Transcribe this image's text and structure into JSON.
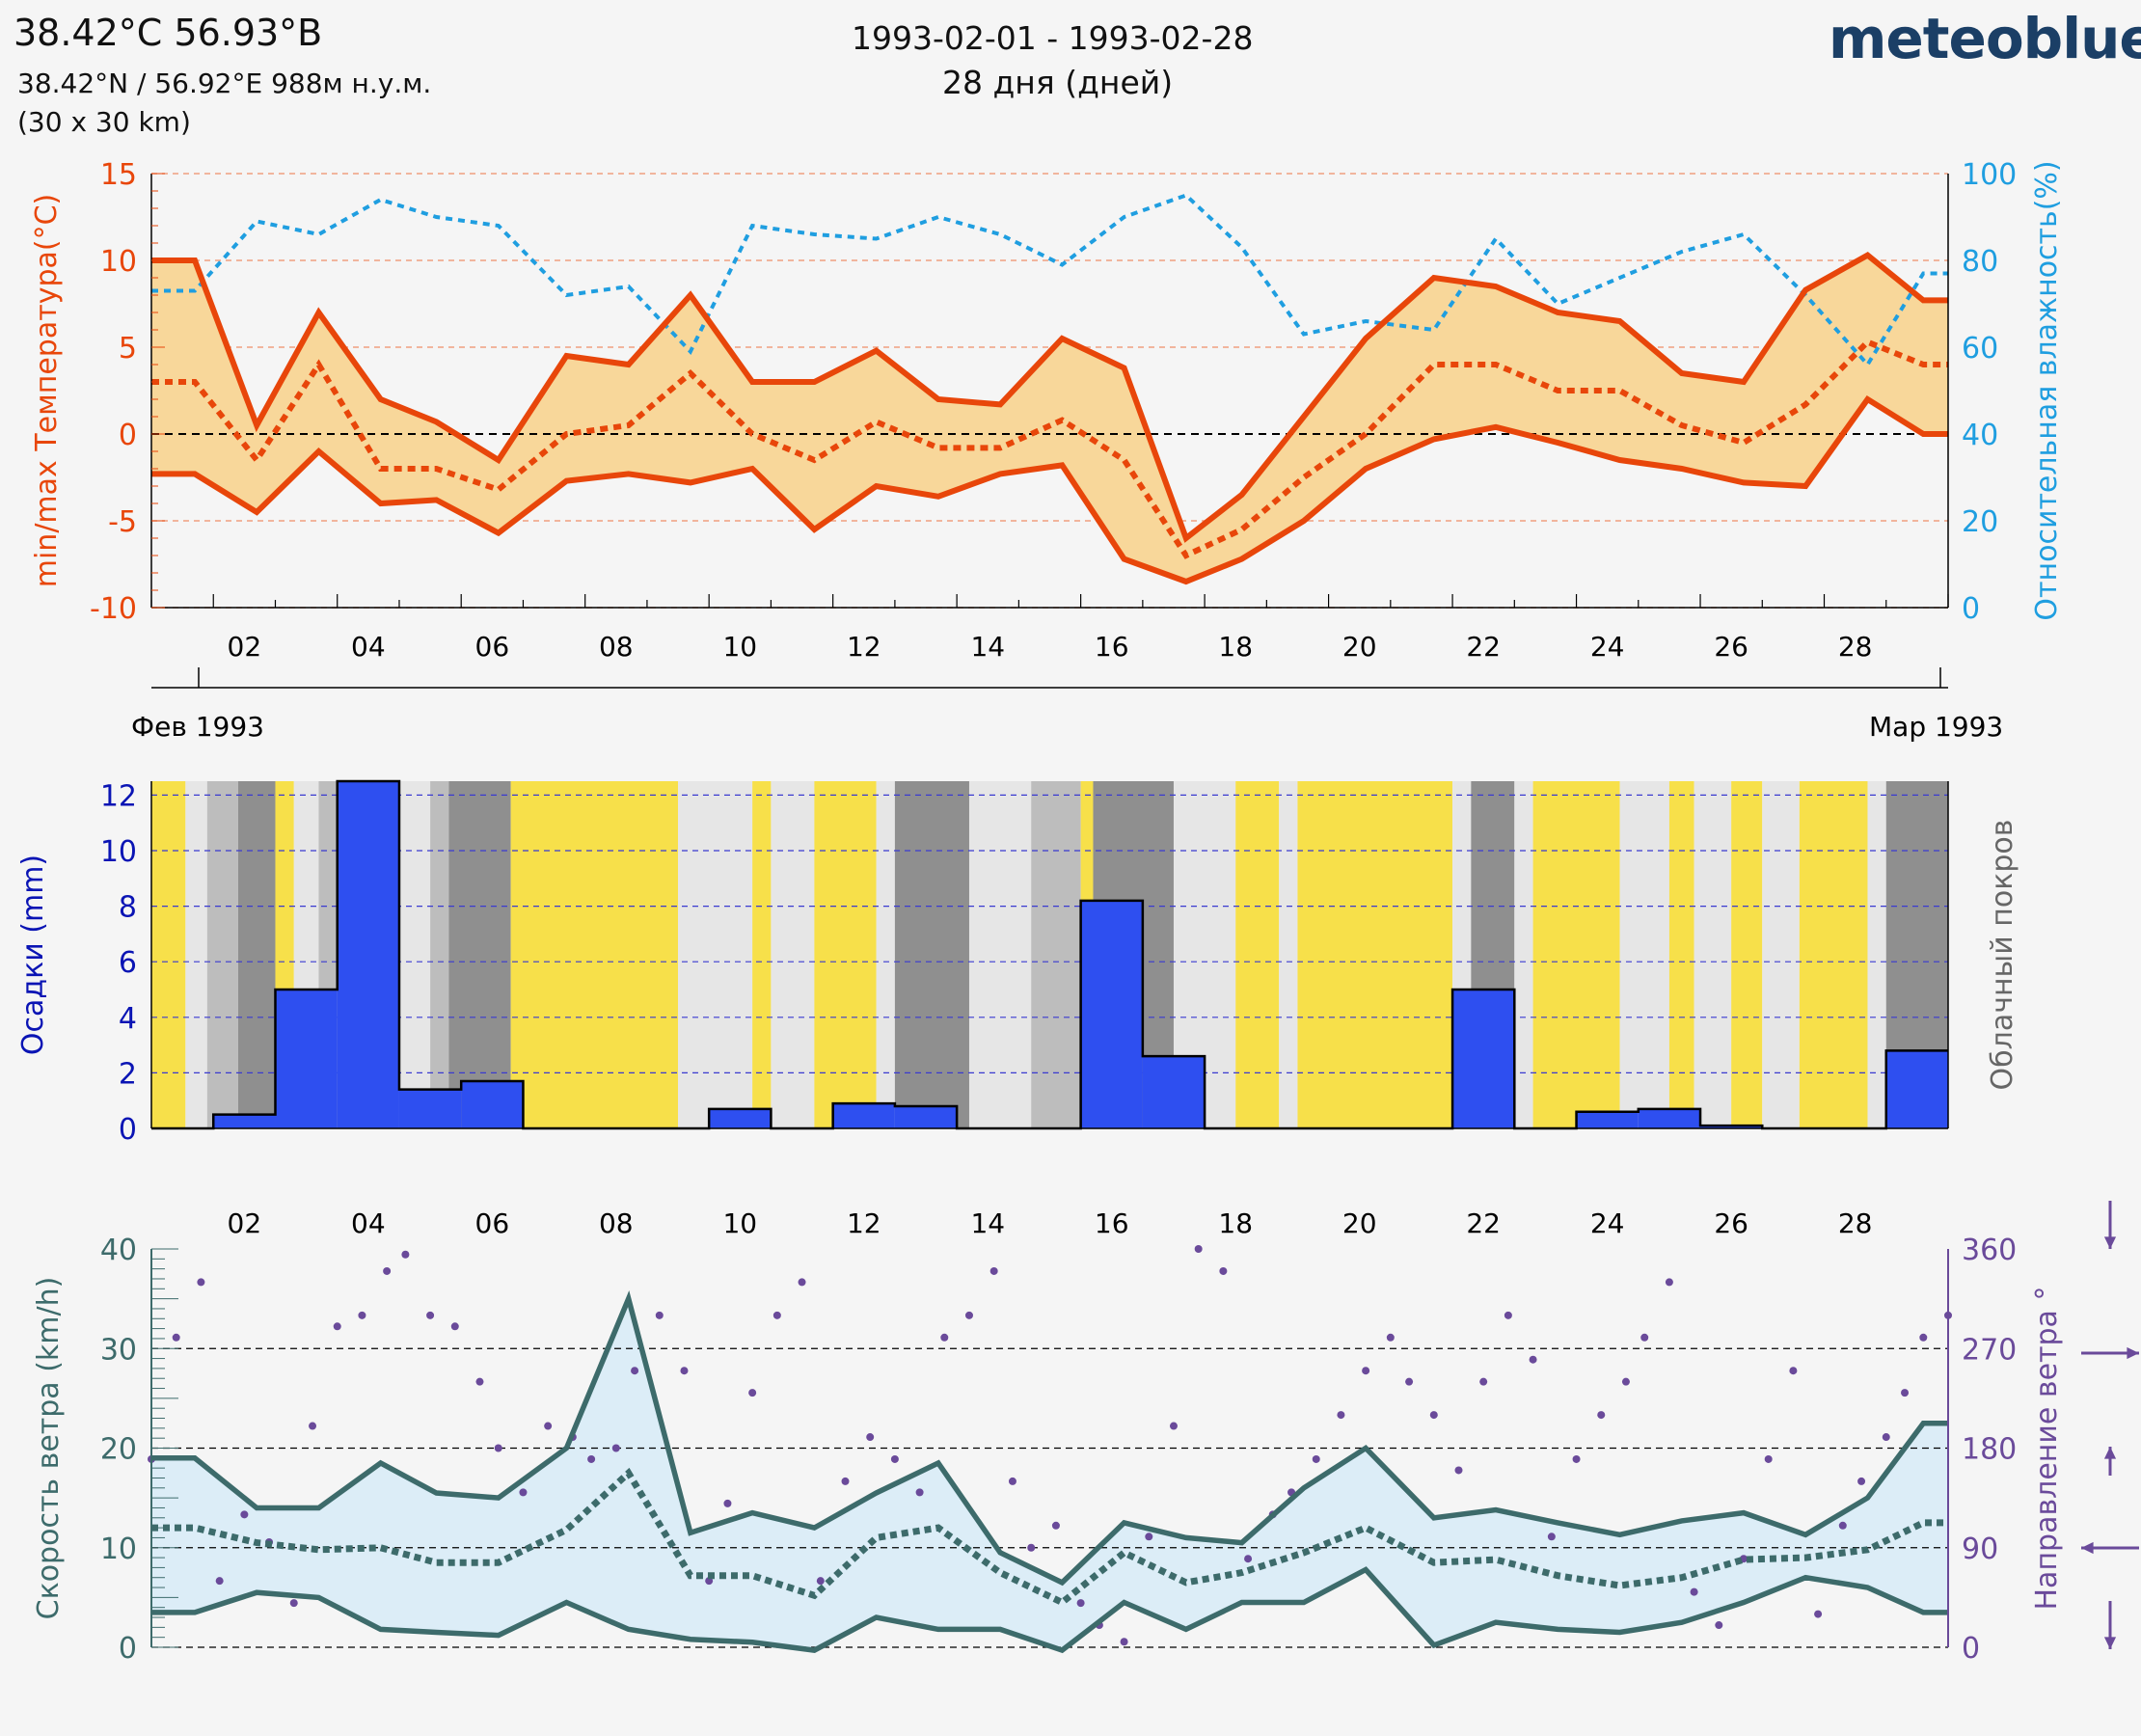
{
  "header": {
    "title": "38.42°C 56.93°В",
    "coords": "38.42°N / 56.92°E   988м н.у.м.",
    "grid": "(30 x 30 km)",
    "date_range": "1993-02-01 - 1993-02-28",
    "days": "28 дня (дней)",
    "logo": "meteoblue"
  },
  "colors": {
    "temp": "#e8460a",
    "temp_fill": "#f8d79a",
    "humidity": "#1f9ee0",
    "precip": "#2e4ff0",
    "precip_axis": "#0a14b4",
    "sun": "#f7e04a",
    "cloud_axis": "#666666",
    "wind": "#3d6b6b",
    "wind_fill": "#dcedf7",
    "wind_dir": "#6a4a9a"
  },
  "chart_data": [
    {
      "type": "line",
      "name": "temperature-humidity",
      "ylabel": "min/max Температура(°C)",
      "y2label": "Относительная влажность(%)",
      "ylim": [
        -10,
        15
      ],
      "y2lim": [
        0,
        100
      ],
      "yticks": [
        "15",
        "10",
        "5",
        "0",
        "-5",
        "-10"
      ],
      "y2ticks": [
        "100",
        "80",
        "60",
        "40",
        "20",
        "0"
      ],
      "xlim": [
        0,
        29
      ],
      "xticks": [
        "02",
        "04",
        "06",
        "08",
        "10",
        "12",
        "14",
        "16",
        "18",
        "20",
        "22",
        "24",
        "26",
        "28"
      ],
      "month_labels": [
        "Фев 1993",
        "Мар 1993"
      ],
      "x": [
        0,
        0.7,
        1.7,
        2.7,
        3.7,
        4.6,
        5.6,
        6.7,
        7.7,
        8.7,
        9.7,
        10.7,
        11.7,
        12.7,
        13.7,
        14.7,
        15.7,
        16.7,
        17.6,
        18.6,
        19.6,
        20.7,
        21.7,
        22.7,
        23.7,
        24.7,
        25.7,
        26.7,
        27.7,
        28.6,
        29
      ],
      "series": [
        {
          "key": "tmax",
          "values": [
            10,
            10,
            0.5,
            7,
            2,
            0.7,
            -1.5,
            4.5,
            4,
            8,
            3,
            3,
            4.8,
            2,
            1.7,
            5.5,
            3.8,
            -6,
            -3.5,
            1,
            5.5,
            9,
            8.5,
            7,
            6.5,
            3.5,
            3,
            8.3,
            10.3,
            7.7,
            7.7
          ]
        },
        {
          "key": "tmean",
          "values": [
            3,
            3,
            -1.5,
            4,
            -2,
            -2,
            -3.2,
            0,
            0.5,
            3.5,
            0,
            -1.5,
            0.7,
            -0.8,
            -0.8,
            0.8,
            -1.5,
            -7,
            -5.5,
            -2.5,
            0,
            4,
            4,
            2.5,
            2.5,
            0.5,
            -0.5,
            1.7,
            5.3,
            4,
            4
          ]
        },
        {
          "key": "tmin",
          "values": [
            -2.3,
            -2.3,
            -4.5,
            -1,
            -4,
            -3.8,
            -5.7,
            -2.7,
            -2.3,
            -2.8,
            -2,
            -5.5,
            -3,
            -3.6,
            -2.3,
            -1.8,
            -7.2,
            -8.5,
            -7.2,
            -5,
            -2,
            -0.3,
            0.4,
            -0.5,
            -1.5,
            -2,
            -2.8,
            -3,
            2,
            0,
            0
          ]
        },
        {
          "key": "humidity",
          "values": [
            73,
            73,
            89,
            86,
            94,
            90,
            88,
            72,
            74,
            59,
            88,
            86,
            85,
            90,
            86,
            79,
            90,
            95,
            83,
            63,
            66,
            64,
            85,
            70,
            76,
            82,
            86,
            72,
            56,
            77,
            77
          ]
        }
      ]
    },
    {
      "type": "bar",
      "name": "precipitation-cloud",
      "ylabel": "Осадки (mm)",
      "y2label": "Облачный покров",
      "ylim": [
        0,
        12.5
      ],
      "yticks": [
        "12",
        "10",
        "8",
        "6",
        "4",
        "2",
        "0"
      ],
      "categories": [
        "01",
        "02",
        "03",
        "04",
        "05",
        "06",
        "07",
        "08",
        "09",
        "10",
        "11",
        "12",
        "13",
        "14",
        "15",
        "16",
        "17",
        "18",
        "19",
        "20",
        "21",
        "22",
        "23",
        "24",
        "25",
        "26",
        "27",
        "28",
        "29"
      ],
      "values": [
        0,
        0.5,
        5,
        12.5,
        1.4,
        1.7,
        0,
        0,
        0,
        0.7,
        0,
        0.9,
        0.8,
        0,
        0,
        8.2,
        2.6,
        0,
        0,
        0,
        0,
        5,
        0,
        0.6,
        0.7,
        0.1,
        0,
        0,
        2.8
      ],
      "cloud_cover": [
        {
          "start": 0.0,
          "end": 0.55,
          "cover": "sun"
        },
        {
          "start": 0.55,
          "end": 0.9,
          "cover": "light"
        },
        {
          "start": 0.9,
          "end": 1.4,
          "cover": "medium"
        },
        {
          "start": 1.4,
          "end": 2.0,
          "cover": "overcast"
        },
        {
          "start": 2.0,
          "end": 2.3,
          "cover": "sun"
        },
        {
          "start": 2.3,
          "end": 2.7,
          "cover": "light"
        },
        {
          "start": 2.7,
          "end": 3.1,
          "cover": "medium"
        },
        {
          "start": 3.1,
          "end": 4.5,
          "cover": "light"
        },
        {
          "start": 4.5,
          "end": 4.8,
          "cover": "medium"
        },
        {
          "start": 4.8,
          "end": 5.8,
          "cover": "overcast"
        },
        {
          "start": 5.8,
          "end": 8.5,
          "cover": "sun"
        },
        {
          "start": 8.5,
          "end": 9.7,
          "cover": "light"
        },
        {
          "start": 9.7,
          "end": 10.0,
          "cover": "sun"
        },
        {
          "start": 10.0,
          "end": 10.7,
          "cover": "light"
        },
        {
          "start": 10.7,
          "end": 11.7,
          "cover": "sun"
        },
        {
          "start": 11.7,
          "end": 12.0,
          "cover": "light"
        },
        {
          "start": 12.0,
          "end": 13.2,
          "cover": "overcast"
        },
        {
          "start": 13.2,
          "end": 14.2,
          "cover": "light"
        },
        {
          "start": 14.2,
          "end": 15.0,
          "cover": "medium"
        },
        {
          "start": 15.0,
          "end": 15.2,
          "cover": "sun"
        },
        {
          "start": 15.2,
          "end": 16.5,
          "cover": "overcast"
        },
        {
          "start": 16.5,
          "end": 17.5,
          "cover": "light"
        },
        {
          "start": 17.5,
          "end": 18.2,
          "cover": "sun"
        },
        {
          "start": 18.2,
          "end": 18.5,
          "cover": "light"
        },
        {
          "start": 18.5,
          "end": 21.0,
          "cover": "sun"
        },
        {
          "start": 21.0,
          "end": 21.3,
          "cover": "light"
        },
        {
          "start": 21.3,
          "end": 22.0,
          "cover": "overcast"
        },
        {
          "start": 22.0,
          "end": 22.3,
          "cover": "light"
        },
        {
          "start": 22.3,
          "end": 23.7,
          "cover": "sun"
        },
        {
          "start": 23.7,
          "end": 24.5,
          "cover": "light"
        },
        {
          "start": 24.5,
          "end": 24.9,
          "cover": "sun"
        },
        {
          "start": 24.9,
          "end": 25.5,
          "cover": "light"
        },
        {
          "start": 25.5,
          "end": 26.0,
          "cover": "sun"
        },
        {
          "start": 26.0,
          "end": 26.6,
          "cover": "light"
        },
        {
          "start": 26.6,
          "end": 27.7,
          "cover": "sun"
        },
        {
          "start": 27.7,
          "end": 28.0,
          "cover": "light"
        },
        {
          "start": 28.0,
          "end": 29.0,
          "cover": "overcast"
        }
      ]
    },
    {
      "type": "line",
      "name": "wind",
      "ylabel": "Скорость ветра (km/h)",
      "y2label": "Направление ветра °",
      "ylim": [
        0,
        40
      ],
      "y2lim": [
        0,
        360
      ],
      "yticks": [
        "40",
        "30",
        "20",
        "10",
        "0"
      ],
      "y2ticks": [
        "360",
        "270",
        "180",
        "90",
        "0"
      ],
      "xticks": [
        "02",
        "04",
        "06",
        "08",
        "10",
        "12",
        "14",
        "16",
        "18",
        "20",
        "22",
        "24",
        "26",
        "28"
      ],
      "x": [
        0,
        0.7,
        1.7,
        2.7,
        3.7,
        4.6,
        5.6,
        6.7,
        7.7,
        8.7,
        9.7,
        10.7,
        11.7,
        12.7,
        13.7,
        14.7,
        15.7,
        16.7,
        17.6,
        18.6,
        19.6,
        20.7,
        21.7,
        22.7,
        23.7,
        24.7,
        25.7,
        26.7,
        27.7,
        28.6,
        29
      ],
      "series": [
        {
          "key": "gust",
          "values": [
            19,
            19,
            14,
            14,
            18.5,
            15.5,
            15,
            20,
            35,
            11.5,
            13.5,
            12,
            15.5,
            18.5,
            9.5,
            6.5,
            12.5,
            11,
            10.5,
            16,
            20,
            13,
            13.8,
            12.5,
            11.3,
            12.7,
            13.5,
            11.3,
            15,
            22.5,
            22.5
          ]
        },
        {
          "key": "mean",
          "values": [
            12,
            12,
            10.5,
            9.8,
            10,
            8.5,
            8.5,
            11.8,
            17.5,
            7.2,
            7.2,
            5.2,
            11,
            12,
            7.5,
            4.5,
            9.5,
            6.5,
            7.5,
            9.5,
            12,
            8.5,
            8.8,
            7.2,
            6.2,
            7,
            8.8,
            9,
            9.8,
            12.5,
            12.5
          ]
        },
        {
          "key": "min",
          "values": [
            3.5,
            3.5,
            5.5,
            5,
            1.8,
            1.5,
            1.2,
            4.5,
            1.8,
            0.8,
            0.5,
            -0.3,
            3,
            1.8,
            1.8,
            -0.3,
            4.5,
            1.8,
            4.5,
            4.5,
            7.8,
            0.2,
            2.5,
            1.8,
            1.5,
            2.5,
            4.5,
            7,
            6,
            3.5,
            3.5
          ]
        }
      ],
      "direction": {
        "x": [
          0,
          0.4,
          0.8,
          1.1,
          1.5,
          1.9,
          2.3,
          2.6,
          3.0,
          3.4,
          3.8,
          4.1,
          4.5,
          4.9,
          5.3,
          5.6,
          6.0,
          6.4,
          6.8,
          7.1,
          7.5,
          7.8,
          8.2,
          8.6,
          9.0,
          9.3,
          9.7,
          10.1,
          10.5,
          10.8,
          11.2,
          11.6,
          12.0,
          12.4,
          12.8,
          13.2,
          13.6,
          13.9,
          14.2,
          14.6,
          15.0,
          15.3,
          15.7,
          16.1,
          16.5,
          16.9,
          17.3,
          17.7,
          18.1,
          18.4,
          18.8,
          19.2,
          19.6,
          20.0,
          20.3,
          20.7,
          21.1,
          21.5,
          21.9,
          22.3,
          22.6,
          23.0,
          23.4,
          23.8,
          24.1,
          24.5,
          24.9,
          25.3,
          25.7,
          26.1,
          26.5,
          26.9,
          27.3,
          27.6,
          28.0,
          28.3,
          28.6,
          29.0
        ],
        "values": [
          170,
          280,
          330,
          60,
          120,
          95,
          40,
          200,
          290,
          300,
          340,
          355,
          300,
          290,
          240,
          180,
          140,
          200,
          190,
          170,
          180,
          250,
          300,
          250,
          60,
          130,
          230,
          300,
          330,
          60,
          150,
          190,
          170,
          140,
          280,
          300,
          340,
          150,
          90,
          110,
          40,
          20,
          5,
          100,
          200,
          360,
          340,
          80,
          120,
          140,
          170,
          210,
          250,
          280,
          240,
          210,
          160,
          240,
          300,
          260,
          100,
          170,
          210,
          240,
          280,
          330,
          50,
          20,
          80,
          170,
          250,
          30,
          110,
          150,
          190,
          230,
          280,
          300
        ]
      }
    }
  ]
}
